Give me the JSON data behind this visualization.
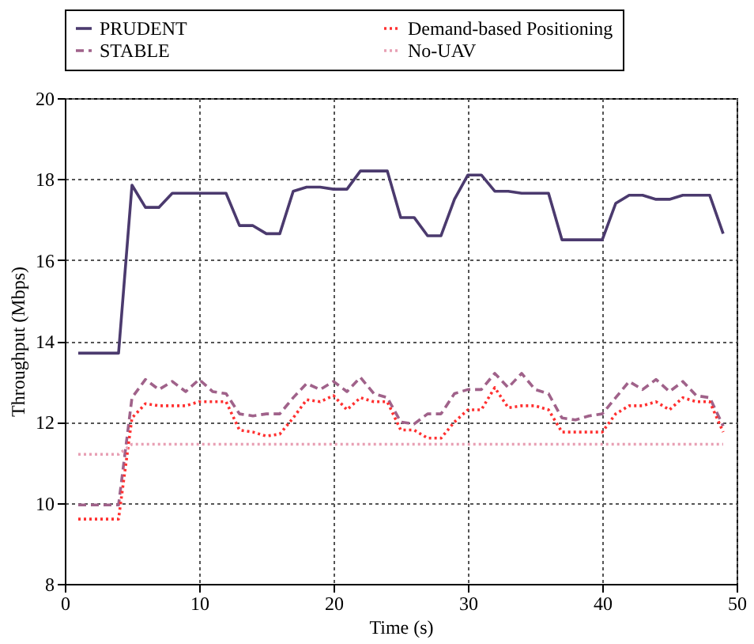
{
  "chart_data": {
    "type": "line",
    "xlabel": "Time (s)",
    "ylabel": "Throughput (Mbps)",
    "x": [
      1,
      2,
      3,
      4,
      5,
      6,
      7,
      8,
      9,
      10,
      11,
      12,
      13,
      14,
      15,
      16,
      17,
      18,
      19,
      20,
      21,
      22,
      23,
      24,
      25,
      26,
      27,
      28,
      29,
      30,
      31,
      32,
      33,
      34,
      35,
      36,
      37,
      38,
      39,
      40,
      41,
      42,
      43,
      44,
      45,
      46,
      47,
      48,
      49
    ],
    "series": [
      {
        "name": "PRUDENT",
        "color": "#4b3a6e",
        "line_style": "solid",
        "values": [
          13.7,
          13.7,
          13.7,
          13.7,
          17.85,
          17.3,
          17.3,
          17.65,
          17.65,
          17.65,
          17.65,
          17.65,
          16.85,
          16.85,
          16.65,
          16.65,
          17.7,
          17.8,
          17.8,
          17.75,
          17.75,
          18.2,
          18.2,
          18.2,
          17.05,
          17.05,
          16.6,
          16.6,
          17.5,
          18.1,
          18.1,
          17.7,
          17.7,
          17.65,
          17.65,
          17.65,
          16.5,
          16.5,
          16.5,
          16.5,
          17.4,
          17.6,
          17.6,
          17.5,
          17.5,
          17.6,
          17.6,
          17.6,
          16.65
        ]
      },
      {
        "name": "STABLE",
        "color": "#a0628a",
        "line_style": "dashed",
        "values": [
          9.95,
          9.95,
          9.95,
          9.95,
          12.6,
          13.05,
          12.8,
          13.0,
          12.75,
          13.05,
          12.75,
          12.7,
          12.2,
          12.15,
          12.2,
          12.2,
          12.6,
          12.95,
          12.8,
          13.0,
          12.75,
          13.1,
          12.7,
          12.6,
          12.0,
          11.95,
          12.2,
          12.2,
          12.7,
          12.8,
          12.8,
          13.2,
          12.85,
          13.2,
          12.8,
          12.7,
          12.1,
          12.05,
          12.15,
          12.2,
          12.6,
          13.0,
          12.8,
          13.05,
          12.75,
          13.0,
          12.65,
          12.6,
          11.9
        ]
      },
      {
        "name": "Demand-based Positioning",
        "color": "#ff3030",
        "line_style": "dotted",
        "values": [
          9.6,
          9.6,
          9.6,
          9.6,
          12.1,
          12.45,
          12.4,
          12.4,
          12.4,
          12.5,
          12.5,
          12.5,
          11.8,
          11.75,
          11.65,
          11.7,
          12.1,
          12.55,
          12.5,
          12.65,
          12.3,
          12.6,
          12.5,
          12.5,
          11.8,
          11.8,
          11.6,
          11.6,
          12.0,
          12.3,
          12.3,
          12.85,
          12.35,
          12.4,
          12.4,
          12.3,
          11.75,
          11.75,
          11.75,
          11.75,
          12.2,
          12.4,
          12.4,
          12.5,
          12.3,
          12.6,
          12.5,
          12.5,
          11.75
        ]
      },
      {
        "name": "No-UAV",
        "color": "#e8a0b4",
        "line_style": "dotted",
        "values": [
          11.2,
          11.2,
          11.2,
          11.2,
          11.45,
          11.45,
          11.45,
          11.45,
          11.45,
          11.45,
          11.45,
          11.45,
          11.45,
          11.45,
          11.45,
          11.45,
          11.45,
          11.45,
          11.45,
          11.45,
          11.45,
          11.45,
          11.45,
          11.45,
          11.45,
          11.45,
          11.45,
          11.45,
          11.45,
          11.45,
          11.45,
          11.45,
          11.45,
          11.45,
          11.45,
          11.45,
          11.45,
          11.45,
          11.45,
          11.45,
          11.45,
          11.45,
          11.45,
          11.45,
          11.45,
          11.45,
          11.45,
          11.45,
          11.45
        ]
      }
    ],
    "xlim": [
      0,
      50
    ],
    "xticks": [
      0,
      10,
      20,
      30,
      40,
      50
    ],
    "ylim": [
      8,
      20
    ],
    "yticks": [
      8,
      10,
      12,
      14,
      16,
      18,
      20
    ],
    "grid": true,
    "legend": "top"
  }
}
